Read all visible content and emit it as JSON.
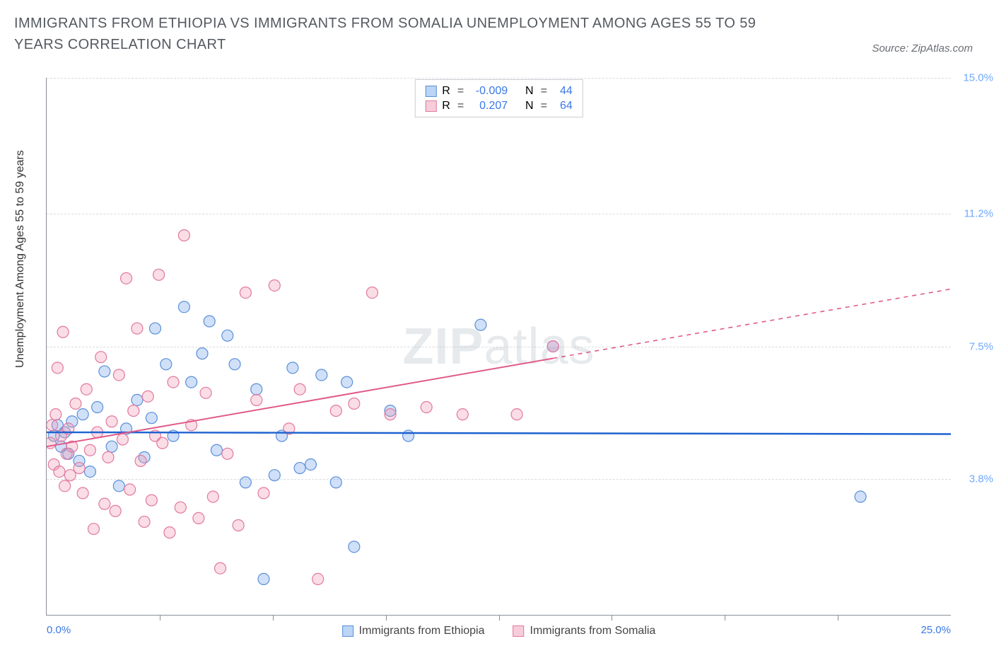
{
  "title": "IMMIGRANTS FROM ETHIOPIA VS IMMIGRANTS FROM SOMALIA UNEMPLOYMENT AMONG AGES 55 TO 59 YEARS CORRELATION CHART",
  "source_label": "Source: ZipAtlas.com",
  "ylabel": "Unemployment Among Ages 55 to 59 years",
  "watermark_a": "ZIP",
  "watermark_b": "atlas",
  "chart": {
    "type": "scatter",
    "background": "#ffffff",
    "grid_color": "#d9dbde",
    "axis_color": "#8a8f97",
    "xlim": [
      0,
      25
    ],
    "ylim": [
      0,
      15
    ],
    "x_min_label": "0.0%",
    "x_max_label": "25.0%",
    "x_label_color_min": "#3b78e7",
    "x_label_color_max": "#3b78e7",
    "xticks_at": [
      3.125,
      6.25,
      9.375,
      12.5,
      15.625,
      18.75,
      21.875
    ],
    "yticks": [
      {
        "v": 3.8,
        "label": "3.8%",
        "color": "#6ea8ff"
      },
      {
        "v": 7.5,
        "label": "7.5%",
        "color": "#6ea8ff"
      },
      {
        "v": 11.2,
        "label": "11.2%",
        "color": "#6ea8ff"
      },
      {
        "v": 15.0,
        "label": "15.0%",
        "color": "#6ea8ff"
      }
    ],
    "marker_radius": 8,
    "marker_stroke_width": 1.2,
    "series": [
      {
        "name": "Immigrants from Ethiopia",
        "key": "ethiopia",
        "fill": "rgba(120,165,235,0.35)",
        "stroke": "#5a8fd8",
        "swatch_fill": "#bcd4f5",
        "swatch_border": "#5a8fd8",
        "R": "-0.009",
        "N": "44",
        "trend": {
          "y_at_x0": 5.1,
          "y_at_xmax": 5.05,
          "stroke": "#1e62d0",
          "width": 2.5,
          "solid_until_x": 25
        },
        "points": [
          [
            0.2,
            5.0
          ],
          [
            0.3,
            5.3
          ],
          [
            0.4,
            4.7
          ],
          [
            0.5,
            5.1
          ],
          [
            0.6,
            4.5
          ],
          [
            0.7,
            5.4
          ],
          [
            0.9,
            4.3
          ],
          [
            1.0,
            5.6
          ],
          [
            1.2,
            4.0
          ],
          [
            1.4,
            5.8
          ],
          [
            1.6,
            6.8
          ],
          [
            1.8,
            4.7
          ],
          [
            2.0,
            3.6
          ],
          [
            2.2,
            5.2
          ],
          [
            2.5,
            6.0
          ],
          [
            2.7,
            4.4
          ],
          [
            2.9,
            5.5
          ],
          [
            3.0,
            8.0
          ],
          [
            3.3,
            7.0
          ],
          [
            3.5,
            5.0
          ],
          [
            3.8,
            8.6
          ],
          [
            4.0,
            6.5
          ],
          [
            4.3,
            7.3
          ],
          [
            4.5,
            8.2
          ],
          [
            4.7,
            4.6
          ],
          [
            5.0,
            7.8
          ],
          [
            5.2,
            7.0
          ],
          [
            5.5,
            3.7
          ],
          [
            5.8,
            6.3
          ],
          [
            6.0,
            1.0
          ],
          [
            6.3,
            3.9
          ],
          [
            6.5,
            5.0
          ],
          [
            6.8,
            6.9
          ],
          [
            7.0,
            4.1
          ],
          [
            7.3,
            4.2
          ],
          [
            7.6,
            6.7
          ],
          [
            8.0,
            3.7
          ],
          [
            8.3,
            6.5
          ],
          [
            8.5,
            1.9
          ],
          [
            9.5,
            5.7
          ],
          [
            10.0,
            5.0
          ],
          [
            12.0,
            8.1
          ],
          [
            14.0,
            7.5
          ],
          [
            22.5,
            3.3
          ]
        ]
      },
      {
        "name": "Immigrants from Somalia",
        "key": "somalia",
        "fill": "rgba(240,150,175,0.32)",
        "stroke": "#e278a0",
        "swatch_fill": "#f6cdd9",
        "swatch_border": "#e278a0",
        "R": "0.207",
        "N": "64",
        "trend": {
          "y_at_x0": 4.7,
          "y_at_xmax": 9.1,
          "stroke": "#e05a8a",
          "width": 2,
          "solid_until_x": 14
        },
        "points": [
          [
            0.1,
            4.8
          ],
          [
            0.15,
            5.3
          ],
          [
            0.2,
            4.2
          ],
          [
            0.25,
            5.6
          ],
          [
            0.3,
            6.9
          ],
          [
            0.35,
            4.0
          ],
          [
            0.4,
            5.0
          ],
          [
            0.45,
            7.9
          ],
          [
            0.5,
            3.6
          ],
          [
            0.55,
            4.5
          ],
          [
            0.6,
            5.2
          ],
          [
            0.65,
            3.9
          ],
          [
            0.7,
            4.7
          ],
          [
            0.8,
            5.9
          ],
          [
            0.9,
            4.1
          ],
          [
            1.0,
            3.4
          ],
          [
            1.1,
            6.3
          ],
          [
            1.2,
            4.6
          ],
          [
            1.3,
            2.4
          ],
          [
            1.4,
            5.1
          ],
          [
            1.5,
            7.2
          ],
          [
            1.6,
            3.1
          ],
          [
            1.7,
            4.4
          ],
          [
            1.8,
            5.4
          ],
          [
            1.9,
            2.9
          ],
          [
            2.0,
            6.7
          ],
          [
            2.1,
            4.9
          ],
          [
            2.2,
            9.4
          ],
          [
            2.3,
            3.5
          ],
          [
            2.4,
            5.7
          ],
          [
            2.5,
            8.0
          ],
          [
            2.6,
            4.3
          ],
          [
            2.7,
            2.6
          ],
          [
            2.8,
            6.1
          ],
          [
            2.9,
            3.2
          ],
          [
            3.0,
            5.0
          ],
          [
            3.1,
            9.5
          ],
          [
            3.2,
            4.8
          ],
          [
            3.4,
            2.3
          ],
          [
            3.5,
            6.5
          ],
          [
            3.7,
            3.0
          ],
          [
            3.8,
            10.6
          ],
          [
            4.0,
            5.3
          ],
          [
            4.2,
            2.7
          ],
          [
            4.4,
            6.2
          ],
          [
            4.6,
            3.3
          ],
          [
            4.8,
            1.3
          ],
          [
            5.0,
            4.5
          ],
          [
            5.3,
            2.5
          ],
          [
            5.5,
            9.0
          ],
          [
            5.8,
            6.0
          ],
          [
            6.0,
            3.4
          ],
          [
            6.3,
            9.2
          ],
          [
            6.7,
            5.2
          ],
          [
            7.0,
            6.3
          ],
          [
            7.5,
            1.0
          ],
          [
            8.0,
            5.7
          ],
          [
            8.5,
            5.9
          ],
          [
            9.0,
            9.0
          ],
          [
            9.5,
            5.6
          ],
          [
            10.5,
            5.8
          ],
          [
            11.5,
            5.6
          ],
          [
            13.0,
            5.6
          ],
          [
            14.0,
            7.5
          ]
        ]
      }
    ]
  },
  "legend_top_labels": {
    "R": "R",
    "N": "N",
    "eq": "="
  },
  "legend_bottom": [
    {
      "key": "ethiopia"
    },
    {
      "key": "somalia"
    }
  ]
}
